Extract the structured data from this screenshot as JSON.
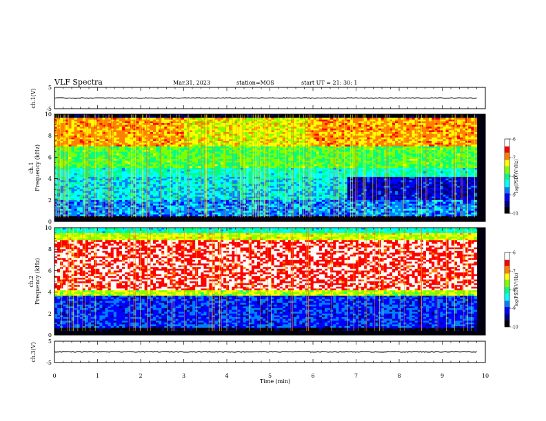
{
  "header": {
    "title": "VLF Spectra",
    "date": "Mar.31, 2023",
    "station": "station=MOS",
    "start": "start  UT =   21: 30: 1"
  },
  "chart_data": [
    {
      "type": "line",
      "name": "ch1-voltage",
      "ylabel": "ch.1(V)",
      "ylim": [
        -5,
        5
      ],
      "yticks": [
        5,
        -5
      ],
      "x": [
        0,
        9.8
      ],
      "values": [
        0,
        0
      ]
    },
    {
      "type": "heatmap",
      "name": "ch1-spectrogram",
      "ylabel_top": "ch.1",
      "ylabel": "Frequency (kHz)",
      "ylim": [
        0,
        10
      ],
      "yticks": [
        0,
        2,
        4,
        6,
        8,
        10
      ],
      "xlim": [
        0,
        10
      ],
      "data_xrange": [
        0,
        9.8
      ],
      "colorbar": {
        "label": "log(PSD)(V²/Hz)",
        "range": [
          -10,
          -6
        ],
        "ticks": [
          -6,
          -7,
          -8,
          -9,
          -10
        ]
      }
    },
    {
      "type": "heatmap",
      "name": "ch2-spectrogram",
      "ylabel_top": "ch.2",
      "ylabel": "Frequency (kHz)",
      "ylim": [
        0,
        10
      ],
      "yticks": [
        0,
        2,
        4,
        6,
        8,
        10
      ],
      "xlim": [
        0,
        10
      ],
      "data_xrange": [
        0,
        9.8
      ],
      "colorbar": {
        "label": "log(PSD)(V²/Hz)",
        "range": [
          -10,
          -6
        ],
        "ticks": [
          -6,
          -7,
          -8,
          -9,
          -10
        ]
      }
    },
    {
      "type": "line",
      "name": "ch3-voltage",
      "ylabel": "ch.3(V)",
      "ylim": [
        -5,
        5
      ],
      "yticks": [
        5,
        -5
      ],
      "x": [
        0,
        9.8
      ],
      "values": [
        0,
        0
      ]
    }
  ],
  "xaxis": {
    "label": "Time  (min)",
    "ticks": [
      0,
      1,
      2,
      3,
      4,
      5,
      6,
      7,
      8,
      9,
      10
    ]
  },
  "colormap": [
    "#000000",
    "#00007f",
    "#0000ff",
    "#0080ff",
    "#00ffff",
    "#00ff80",
    "#80ff00",
    "#ffff00",
    "#ff8000",
    "#ff0000",
    "#ffffff"
  ]
}
